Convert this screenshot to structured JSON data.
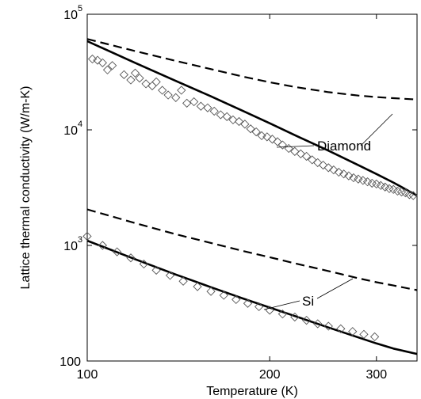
{
  "chart_data": {
    "type": "line",
    "xlabel": "Temperature (K)",
    "ylabel": "Lattice thermal conductivity (W/m-K)",
    "xscale": "log",
    "yscale": "log",
    "xlim": [
      100,
      350
    ],
    "ylim": [
      100,
      100000
    ],
    "grid": false,
    "xticks": [
      {
        "value": 100,
        "label": "100"
      },
      {
        "value": 200,
        "label": "200"
      },
      {
        "value": 300,
        "label": "300"
      }
    ],
    "yticks": [
      {
        "value": 100,
        "label": "100",
        "base": "100",
        "exp": ""
      },
      {
        "value": 1000,
        "label": "10^3",
        "base": "10",
        "exp": "3"
      },
      {
        "value": 10000,
        "label": "10^4",
        "base": "10",
        "exp": "4"
      },
      {
        "value": 100000,
        "label": "10^5",
        "base": "10",
        "exp": "5"
      }
    ],
    "annotations": [
      {
        "text": "Diamond",
        "x": 0,
        "y": 0
      },
      {
        "text": "Si",
        "x": 0,
        "y": 0
      }
    ],
    "series": [
      {
        "style": "solid",
        "color": "#000000",
        "x": [
          100,
          120,
          140,
          160,
          180,
          200,
          220,
          250,
          280,
          300,
          320,
          350
        ],
        "y": [
          58500,
          38000,
          26500,
          19500,
          14700,
          11400,
          9000,
          6600,
          4950,
          4150,
          3500,
          2700
        ]
      },
      {
        "style": "dashed",
        "color": "#000000",
        "x": [
          100,
          120,
          140,
          160,
          180,
          200,
          220,
          250,
          280,
          300,
          320,
          350
        ],
        "y": [
          61000,
          48000,
          39500,
          33500,
          29000,
          25800,
          23500,
          21200,
          19800,
          19200,
          18800,
          18300
        ]
      },
      {
        "style": "solid",
        "color": "#000000",
        "x": [
          100,
          120,
          140,
          160,
          180,
          200,
          220,
          250,
          280,
          300,
          320,
          350
        ],
        "y": [
          1100,
          760,
          560,
          435,
          350,
          290,
          245,
          195,
          160,
          142,
          128,
          115
        ]
      },
      {
        "style": "dashed",
        "color": "#000000",
        "x": [
          100,
          120,
          140,
          160,
          180,
          200,
          220,
          250,
          280,
          300,
          320,
          350
        ],
        "y": [
          2050,
          1560,
          1250,
          1050,
          900,
          790,
          700,
          600,
          520,
          480,
          450,
          410
        ]
      },
      {
        "style": "markers",
        "marker": "diamond",
        "color": "#555555",
        "x": [
          102,
          104,
          106,
          108,
          110,
          115,
          118,
          120,
          122,
          125,
          128,
          130,
          133,
          136,
          140,
          143,
          146,
          150,
          154,
          158,
          162,
          166,
          170,
          174,
          178,
          182,
          186,
          190,
          194,
          198,
          202,
          206,
          210,
          215,
          220,
          225,
          230,
          235,
          240,
          245,
          250,
          255,
          260,
          265,
          270,
          275,
          280,
          285,
          290,
          295,
          300,
          305,
          310,
          315,
          320,
          325,
          330,
          335,
          340,
          345
        ],
        "y": [
          41000,
          40000,
          38000,
          33000,
          36000,
          30000,
          27000,
          31000,
          28000,
          25000,
          24000,
          26000,
          22000,
          20000,
          19000,
          22000,
          17000,
          17500,
          16000,
          15500,
          14500,
          13500,
          13000,
          12200,
          11800,
          11200,
          10200,
          9600,
          8900,
          8700,
          8300,
          7900,
          7400,
          6900,
          6500,
          6200,
          5900,
          5500,
          5200,
          4950,
          4700,
          4500,
          4300,
          4150,
          4000,
          3850,
          3750,
          3650,
          3550,
          3450,
          3400,
          3300,
          3200,
          3100,
          3050,
          2950,
          2900,
          2850,
          2750,
          2700
        ]
      },
      {
        "style": "markers",
        "marker": "diamond",
        "color": "#555555",
        "x": [
          100,
          106,
          112,
          118,
          124,
          130,
          137,
          144,
          152,
          160,
          168,
          176,
          184,
          192,
          200,
          210,
          220,
          230,
          240,
          250,
          262,
          274,
          286,
          298
        ],
        "y": [
          1200,
          1000,
          880,
          780,
          690,
          610,
          550,
          490,
          440,
          400,
          370,
          340,
          315,
          295,
          275,
          255,
          240,
          225,
          210,
          200,
          190,
          180,
          170,
          162
        ]
      }
    ]
  }
}
